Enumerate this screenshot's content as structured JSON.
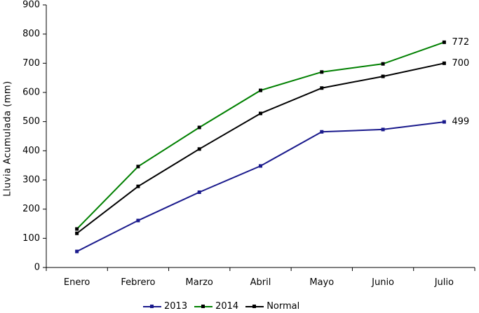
{
  "chart_data": {
    "type": "line",
    "title": "",
    "xlabel": "",
    "ylabel": "Lluvia Acumulada (mm)",
    "ylim": [
      0,
      900
    ],
    "ytick_step": 100,
    "yticks": [
      0,
      100,
      200,
      300,
      400,
      500,
      600,
      700,
      800,
      900
    ],
    "categories": [
      "Enero",
      "Febrero",
      "Marzo",
      "Abril",
      "Mayo",
      "Junio",
      "Julio"
    ],
    "grid": false,
    "legend_position": "bottom",
    "background": "#ffffff",
    "axis_color": "#000000",
    "text_color": "#000000",
    "series": [
      {
        "name": "2013",
        "color": "#1a1a8c",
        "marker_color": "#1a1a8c",
        "values": [
          55,
          161,
          258,
          348,
          465,
          473,
          499
        ],
        "end_label": "499"
      },
      {
        "name": "2014",
        "color": "#008000",
        "marker_color": "#000000",
        "values": [
          132,
          346,
          480,
          607,
          670,
          698,
          772
        ],
        "end_label": "772"
      },
      {
        "name": "Normal",
        "color": "#000000",
        "marker_color": "#000000",
        "values": [
          117,
          278,
          406,
          528,
          615,
          655,
          700
        ],
        "end_label": "700"
      }
    ]
  }
}
